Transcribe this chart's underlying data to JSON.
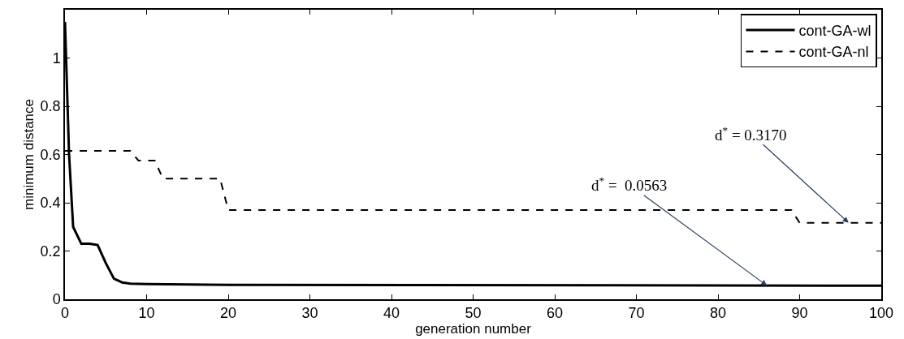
{
  "chart_data": {
    "type": "line",
    "xlabel": "generation number",
    "ylabel": "minimum distance",
    "xlim": [
      0,
      100
    ],
    "xticks": [
      0,
      10,
      20,
      30,
      40,
      50,
      60,
      70,
      80,
      90,
      100
    ],
    "ylim": [
      0,
      1.2
    ],
    "yticks": [
      0,
      0.2,
      0.4,
      0.6,
      0.8,
      1
    ],
    "legend": "top right",
    "series": [
      {
        "name": "cont-GA-wl",
        "color": "#000000",
        "line_style": "solid",
        "x": [
          0,
          0.5,
          1,
          2,
          3,
          4,
          5,
          6,
          7,
          8,
          10,
          20,
          100
        ],
        "values": [
          1.15,
          0.6,
          0.3,
          0.23,
          0.23,
          0.225,
          0.15,
          0.085,
          0.07,
          0.065,
          0.063,
          0.06,
          0.0563
        ]
      },
      {
        "name": "cont-GA-nl",
        "color": "#000000",
        "line_style": "dashed",
        "x": [
          0,
          8,
          9,
          10,
          11,
          12,
          19,
          20,
          89,
          90,
          100
        ],
        "values": [
          0.615,
          0.615,
          0.575,
          0.575,
          0.575,
          0.5,
          0.5,
          0.37,
          0.37,
          0.317,
          0.317
        ]
      }
    ],
    "annotations": [
      {
        "text": "d$^{*}$ =  0.0563",
        "x": 86,
        "y": 0.0563
      },
      {
        "text": "d$^{*}$ = 0.3170",
        "x": 96,
        "y": 0.317
      }
    ]
  }
}
